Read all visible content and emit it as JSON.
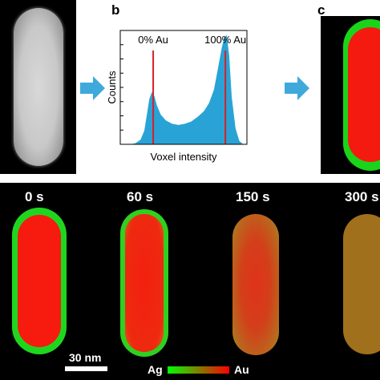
{
  "panel_labels": {
    "b": "b",
    "c": "c"
  },
  "histogram": {
    "chart_data": {
      "type": "area",
      "ylabel": "Counts",
      "xlabel": "Voxel intensity",
      "grid": false,
      "color": "#29a3d6",
      "marker_color": "#d62027",
      "markers": [
        {
          "label": "0% Au",
          "x": 0.26
        },
        {
          "label": "100% Au",
          "x": 0.83
        }
      ],
      "x": [
        0.0,
        0.04,
        0.08,
        0.12,
        0.16,
        0.19,
        0.21,
        0.23,
        0.25,
        0.27,
        0.29,
        0.32,
        0.36,
        0.41,
        0.46,
        0.51,
        0.56,
        0.61,
        0.66,
        0.7,
        0.74,
        0.77,
        0.8,
        0.82,
        0.84,
        0.86,
        0.88,
        0.91,
        0.94,
        0.97,
        1.0
      ],
      "y": [
        0.0,
        0.0,
        0.0,
        0.01,
        0.04,
        0.12,
        0.26,
        0.4,
        0.46,
        0.42,
        0.34,
        0.26,
        0.21,
        0.18,
        0.17,
        0.18,
        0.2,
        0.24,
        0.29,
        0.36,
        0.48,
        0.66,
        0.84,
        0.94,
        0.96,
        0.78,
        0.42,
        0.14,
        0.03,
        0.0,
        0.0
      ]
    }
  },
  "time_labels": [
    "0 s",
    "60 s",
    "150 s",
    "300 s"
  ],
  "scale_bar": {
    "label": "30 nm"
  },
  "colorbar": {
    "left_label": "Ag",
    "right_label": "Au",
    "left_color": "#00ff00",
    "right_color": "#ff0000"
  }
}
